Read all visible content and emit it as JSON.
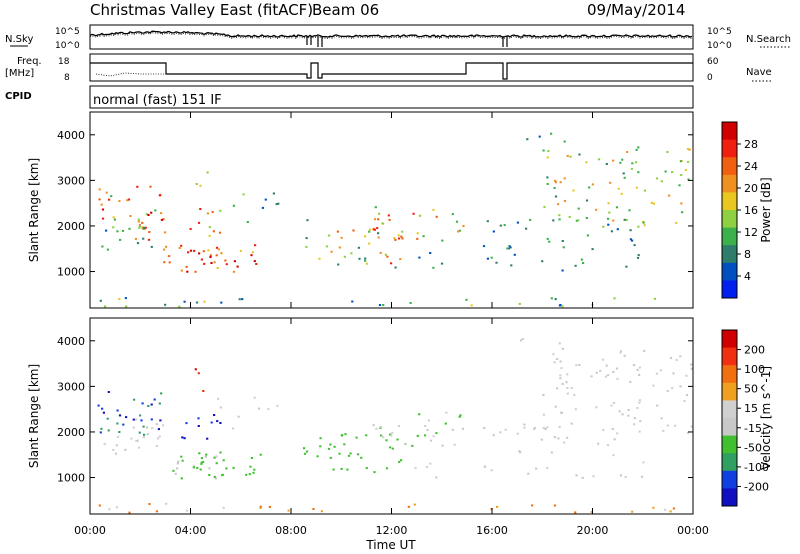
{
  "header": {
    "station": "Christmas Valley East (fitACF)",
    "beam": "Beam 06",
    "date": "09/May/2014"
  },
  "left_labels": {
    "nsky": "N.Sky",
    "freq": "Freq.",
    "freq_unit": "[MHz]",
    "cpid": "CPID"
  },
  "right_labels": {
    "nsearch": "N.Search",
    "nave": "Nave"
  },
  "cpid_text": "normal (fast) 151 IF",
  "colors": {
    "power": [
      "#0020f0",
      "#0050c0",
      "#2e7d6a",
      "#3cb04a",
      "#8ed040",
      "#e8c820",
      "#f09020",
      "#f06010",
      "#f02010",
      "#d00000"
    ],
    "velocity": [
      "#1010c0",
      "#1040e0",
      "#30a060",
      "#40c030",
      "#c8c8c8",
      "#d0d0d0",
      "#f0a020",
      "#f07010",
      "#f03010",
      "#d00000"
    ]
  },
  "chart_data": [
    {
      "type": "line",
      "name": "noise-panel",
      "y_tick_labels_left": [
        "10^5",
        "10^0"
      ],
      "y_tick_labels_right": [
        "10^5",
        "10^0"
      ]
    },
    {
      "type": "line",
      "name": "freq-panel",
      "y_tick_labels_left": [
        "18",
        "8"
      ],
      "y_tick_labels_right": [
        "60",
        "0"
      ]
    },
    {
      "type": "heatmap",
      "name": "power-panel",
      "ylabel": "Slant Range [km]",
      "y_ticks": [
        1000,
        2000,
        3000,
        4000
      ],
      "ylim": [
        200,
        4500
      ],
      "xlim": [
        0,
        24
      ],
      "colorbar": {
        "label": "Power [dB]",
        "tick_labels": [
          "28",
          "24",
          "20",
          "16",
          "12",
          "8",
          "4"
        ],
        "range": [
          0,
          32
        ]
      }
    },
    {
      "type": "heatmap",
      "name": "velocity-panel",
      "ylabel": "Slant Range [km]",
      "y_ticks": [
        1000,
        2000,
        3000,
        4000
      ],
      "ylim": [
        200,
        4500
      ],
      "xlim": [
        0,
        24
      ],
      "colorbar": {
        "label": "Velocity [m s^-1]",
        "tick_labels": [
          "200",
          "100",
          "50",
          "15",
          "-15",
          "-50",
          "-100",
          "-200"
        ]
      }
    }
  ],
  "x_axis": {
    "ticks": [
      "00:00",
      "04:00",
      "08:00",
      "12:00",
      "16:00",
      "20:00",
      "00:00"
    ],
    "title": "Time UT"
  }
}
